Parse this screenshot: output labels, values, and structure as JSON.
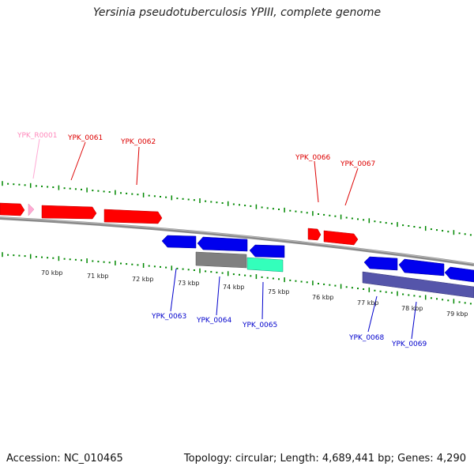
{
  "title": "Yersinia pseudotuberculosis YPIII, complete genome",
  "footer": {
    "accession": "Accession: NC_010465",
    "summary": "Topology: circular; Length: 4,689,441 bp; Genes: 4,290"
  },
  "colors": {
    "forward_gene": "#ff0000",
    "forward_rna": "#ffaad4",
    "reverse_gene": "#0000ee",
    "label_forward": "#dd0000",
    "label_reverse": "#0000cc",
    "label_rna": "#ff88bb",
    "tick": "#008800",
    "backbone": "#888888",
    "feature_gray": "#808080",
    "feature_green": "#33ffbb",
    "feature_purple": "#5555aa"
  },
  "scale": {
    "ticks": [
      "70 kbp",
      "71 kbp",
      "72 kbp",
      "73 kbp",
      "74 kbp",
      "75 kbp",
      "76 kbp",
      "77 kbp",
      "78 kbp",
      "79 kbp"
    ]
  },
  "genes": {
    "forward": [
      "YPK_R0001",
      "YPK_0061",
      "YPK_0062",
      "YPK_0066",
      "YPK_0067"
    ],
    "reverse": [
      "YPK_0063",
      "YPK_0064",
      "YPK_0065",
      "YPK_0068",
      "YPK_0069"
    ]
  }
}
